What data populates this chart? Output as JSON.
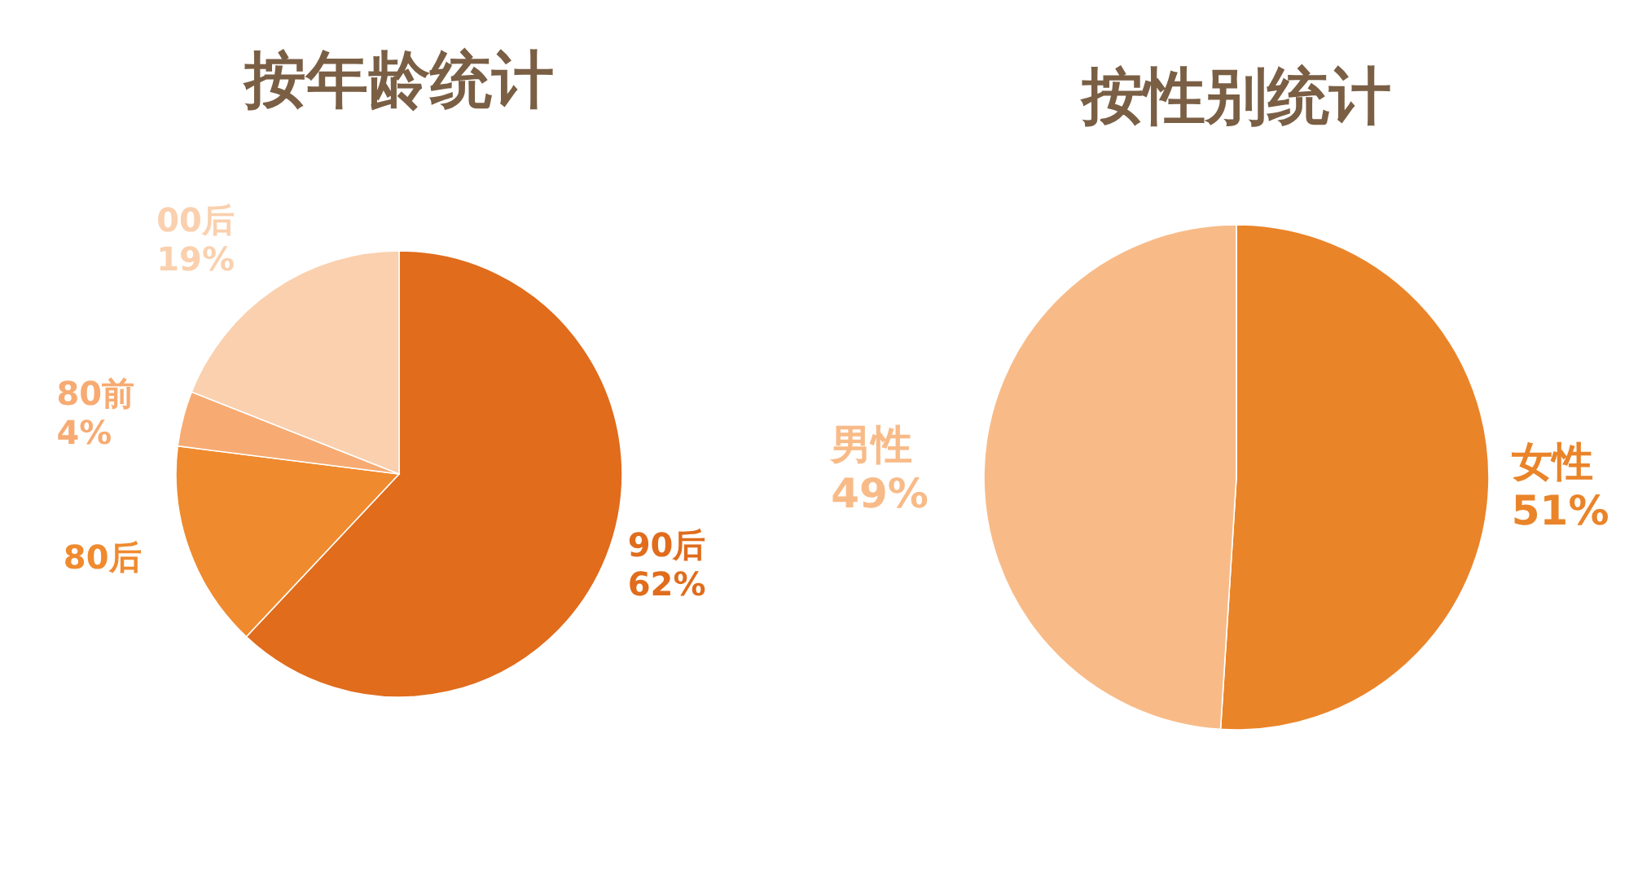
{
  "chart_data": [
    {
      "type": "pie",
      "title": "按年龄统计",
      "categories": [
        "90后",
        "80后",
        "80前",
        "00后"
      ],
      "values": [
        62,
        15,
        4,
        19
      ],
      "colors": [
        "#e06c1c",
        "#f08a2e",
        "#f7ab72",
        "#fad0ae"
      ],
      "value_labels": [
        "62%",
        null,
        "4%",
        "19%"
      ]
    },
    {
      "type": "pie",
      "title": "按性别统计",
      "categories": [
        "女性",
        "男性"
      ],
      "values": [
        51,
        49
      ],
      "colors": [
        "#ea8429",
        "#f8bb88"
      ],
      "value_labels": [
        "51%",
        "49%"
      ]
    }
  ]
}
